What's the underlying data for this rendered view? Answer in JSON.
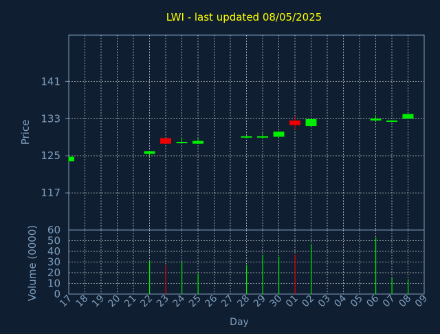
{
  "chart_data": [
    {
      "type": "candlestick",
      "title": "LWI - last updated 08/05/2025",
      "ylabel": "Price",
      "ylim": [
        109,
        151
      ],
      "yticks": [
        117,
        125,
        133,
        141
      ],
      "x": [
        "17",
        "18",
        "19",
        "20",
        "21",
        "22",
        "23",
        "24",
        "25",
        "26",
        "27",
        "28",
        "29",
        "30",
        "01",
        "02",
        "03",
        "04",
        "05",
        "06",
        "07",
        "08",
        "09"
      ],
      "candles": [
        {
          "day": "17",
          "open": 123.8,
          "high": 124.8,
          "low": 123.6,
          "close": 124.8
        },
        {
          "day": "22",
          "open": 125.4,
          "high": 126.0,
          "low": 125.0,
          "close": 126.0
        },
        {
          "day": "23",
          "open": 128.8,
          "high": 128.8,
          "low": 127.6,
          "close": 127.6
        },
        {
          "day": "24",
          "open": 127.7,
          "high": 129.0,
          "low": 127.6,
          "close": 128.0
        },
        {
          "day": "25",
          "open": 127.6,
          "high": 128.8,
          "low": 127.6,
          "close": 128.2
        },
        {
          "day": "28",
          "open": 129.0,
          "high": 129.3,
          "low": 128.8,
          "close": 129.2
        },
        {
          "day": "29",
          "open": 129.0,
          "high": 129.9,
          "low": 128.6,
          "close": 129.2
        },
        {
          "day": "30",
          "open": 129.1,
          "high": 130.4,
          "low": 129.0,
          "close": 130.2
        },
        {
          "day": "01",
          "open": 132.6,
          "high": 133.5,
          "low": 130.6,
          "close": 131.6
        },
        {
          "day": "02",
          "open": 131.4,
          "high": 133.1,
          "low": 131.4,
          "close": 132.9
        },
        {
          "day": "06",
          "open": 132.6,
          "high": 133.8,
          "low": 132.4,
          "close": 133.0
        },
        {
          "day": "07",
          "open": 132.5,
          "high": 132.7,
          "low": 132.2,
          "close": 132.6
        },
        {
          "day": "08",
          "open": 133.0,
          "high": 134.0,
          "low": 133.0,
          "close": 134.0
        }
      ]
    },
    {
      "type": "bar",
      "ylabel": "Volume (0000)",
      "xlabel": "Day",
      "ylim": [
        0,
        60
      ],
      "yticks": [
        0,
        10,
        20,
        30,
        40,
        50,
        60
      ],
      "x": [
        "17",
        "18",
        "19",
        "20",
        "21",
        "22",
        "23",
        "24",
        "25",
        "26",
        "27",
        "28",
        "29",
        "30",
        "01",
        "02",
        "03",
        "04",
        "05",
        "06",
        "07",
        "08",
        "09"
      ],
      "bars": [
        {
          "day": "17",
          "value": 0,
          "color": "#00ee00"
        },
        {
          "day": "22",
          "value": 31,
          "color": "#00ee00"
        },
        {
          "day": "23",
          "value": 27,
          "color": "#ee0000"
        },
        {
          "day": "24",
          "value": 30,
          "color": "#00ee00"
        },
        {
          "day": "25",
          "value": 19,
          "color": "#00ee00"
        },
        {
          "day": "28",
          "value": 27,
          "color": "#00ee00"
        },
        {
          "day": "29",
          "value": 37,
          "color": "#00ee00"
        },
        {
          "day": "30",
          "value": 35,
          "color": "#00ee00"
        },
        {
          "day": "01",
          "value": 37,
          "color": "#ee0000"
        },
        {
          "day": "02",
          "value": 47,
          "color": "#00ee00"
        },
        {
          "day": "06",
          "value": 53,
          "color": "#00ee00"
        },
        {
          "day": "07",
          "value": 15,
          "color": "#00ee00"
        },
        {
          "day": "08",
          "value": 14,
          "color": "#00ee00"
        }
      ]
    }
  ],
  "colors": {
    "background": "#0f1e30",
    "title": "#ffff00",
    "axis_text": "#7f9fbf",
    "frame": "#7f9fbf",
    "grid": "#c8c8c8",
    "up": "#00ee00",
    "down": "#ee0000"
  },
  "grid": true
}
